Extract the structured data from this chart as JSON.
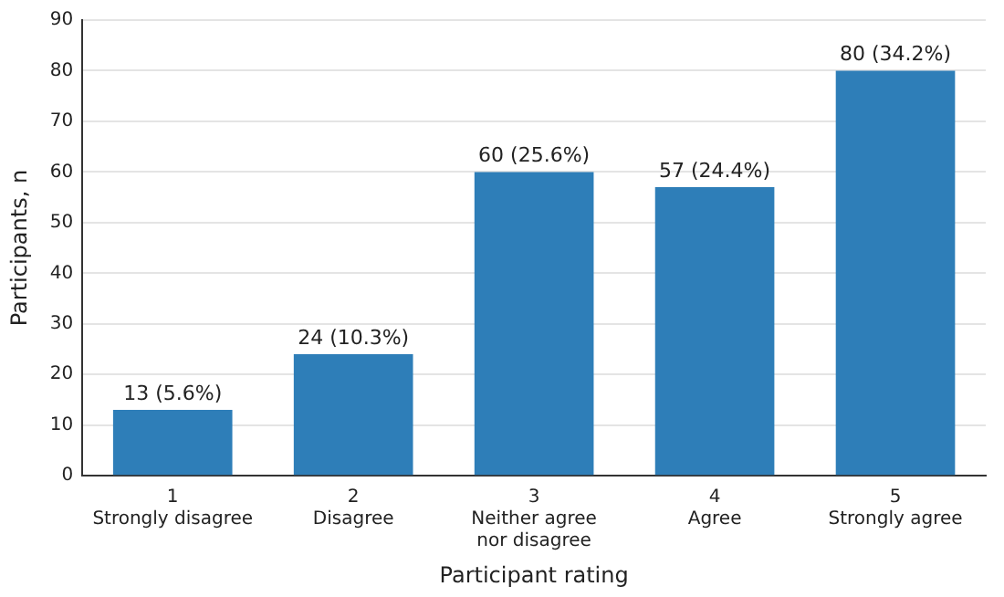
{
  "chart_data": {
    "type": "bar",
    "xlabel": "Participant rating",
    "ylabel": "Participants, n",
    "categories": [
      "1\nStrongly disagree",
      "2\nDisagree",
      "3\nNeither agree\nnor disagree",
      "4\nAgree",
      "5\nStrongly agree"
    ],
    "values": [
      13,
      24,
      60,
      57,
      80
    ],
    "value_labels": [
      "13 (5.6%)",
      "24 (10.3%)",
      "60 (25.6%)",
      "57 (24.4%)",
      "80 (34.2%)"
    ],
    "color": "#2e7eb8",
    "ylim": [
      0,
      90
    ],
    "yticks": [
      0,
      10,
      20,
      30,
      40,
      50,
      60,
      70,
      80,
      90
    ],
    "grid": "y",
    "legend": false
  }
}
